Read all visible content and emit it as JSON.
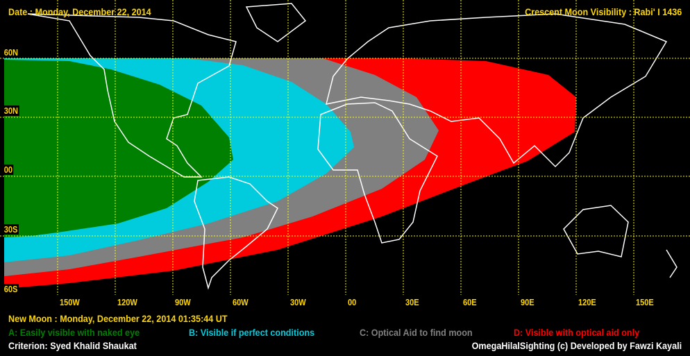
{
  "header": {
    "date": "Date : Monday, December 22, 2014",
    "title": "Crescent Moon Visibility : Rabi' I  1436"
  },
  "map": {
    "lat_labels": [
      "60N",
      "30N",
      "00",
      "30S",
      "60S"
    ],
    "lon_labels": [
      "150W",
      "120W",
      "90W",
      "60W",
      "30W",
      "00",
      "30E",
      "60E",
      "90E",
      "120E",
      "150E"
    ],
    "zone_colors": {
      "A": "#008000",
      "B": "#00ccdd",
      "C": "#808080",
      "D": "#ff0000"
    },
    "grid_color": "#ffff00",
    "coastline_color": "#ffffff"
  },
  "footer": {
    "new_moon": "New Moon : Monday, December 22, 2014  01:35:44  UT",
    "legend": [
      {
        "label": "A: Easily visible with naked eye",
        "color": "#008000"
      },
      {
        "label": "B: Visible if perfect conditions",
        "color": "#00ccdd"
      },
      {
        "label": "C: Optical Aid to find moon",
        "color": "#808080"
      },
      {
        "label": "D: Visible with optical aid only",
        "color": "#ff0000"
      }
    ],
    "criterion": "Criterion: Syed Khalid Shaukat",
    "credit": "OmegaHilalSighting  (c)  Developed by Fawzi Kayali"
  }
}
